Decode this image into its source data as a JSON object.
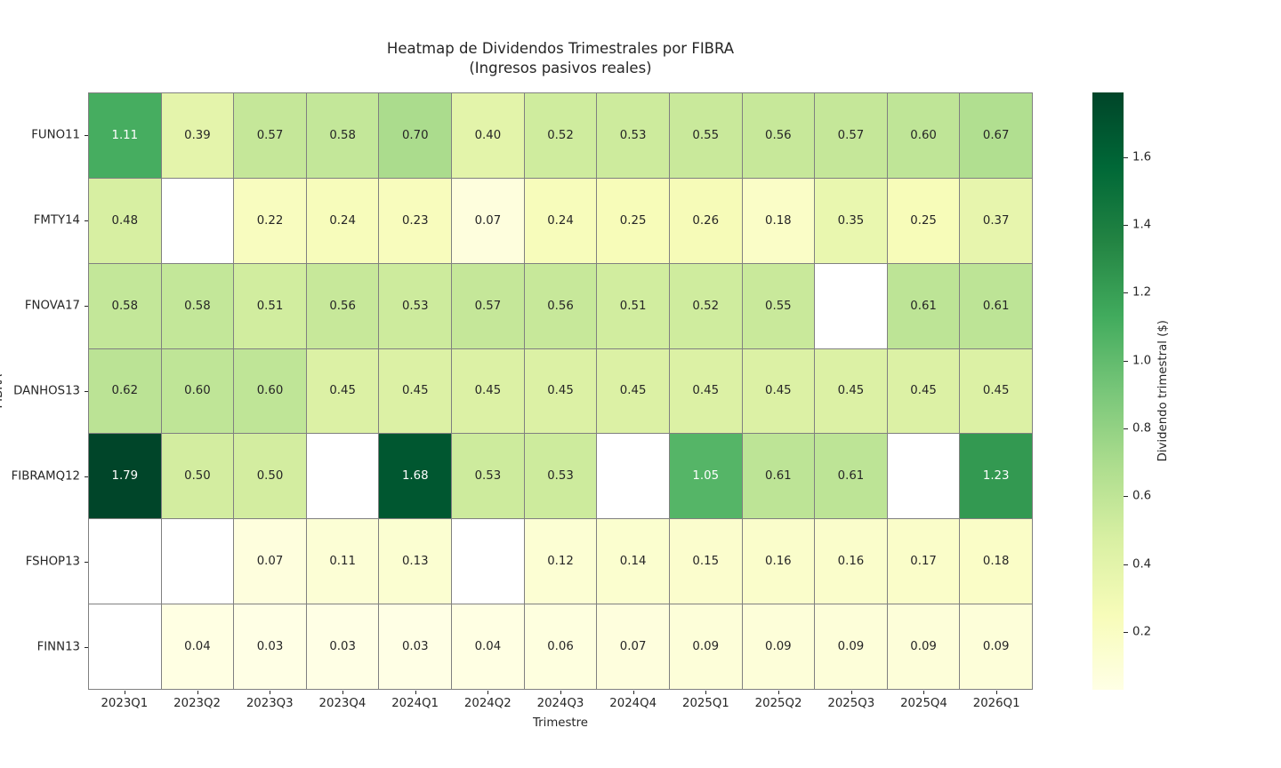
{
  "title": {
    "line1": "Heatmap de Dividendos Trimestrales por FIBRA",
    "line2": "(Ingresos pasivos reales)"
  },
  "chart_data": {
    "type": "heatmap",
    "title": "Heatmap de Dividendos Trimestrales por FIBRA\n(Ingresos pasivos reales)",
    "xlabel": "Trimestre",
    "ylabel": "FIBRA",
    "columns": [
      "2023Q1",
      "2023Q2",
      "2023Q3",
      "2023Q4",
      "2024Q1",
      "2024Q2",
      "2024Q3",
      "2024Q4",
      "2025Q1",
      "2025Q2",
      "2025Q3",
      "2025Q4",
      "2026Q1"
    ],
    "rows": [
      "FUNO11",
      "FMTY14",
      "FNOVA17",
      "DANHOS13",
      "FIBRAMQ12",
      "FSHOP13",
      "FINN13"
    ],
    "values": [
      [
        1.11,
        0.39,
        0.57,
        0.58,
        0.7,
        0.4,
        0.52,
        0.53,
        0.55,
        0.56,
        0.57,
        0.6,
        0.67
      ],
      [
        0.48,
        null,
        0.22,
        0.24,
        0.23,
        0.07,
        0.24,
        0.25,
        0.26,
        0.18,
        0.35,
        0.25,
        0.37
      ],
      [
        0.58,
        0.58,
        0.51,
        0.56,
        0.53,
        0.57,
        0.56,
        0.51,
        0.52,
        0.55,
        null,
        0.61,
        0.61
      ],
      [
        0.62,
        0.6,
        0.6,
        0.45,
        0.45,
        0.45,
        0.45,
        0.45,
        0.45,
        0.45,
        0.45,
        0.45,
        0.45
      ],
      [
        1.79,
        0.5,
        0.5,
        null,
        1.68,
        0.53,
        0.53,
        null,
        1.05,
        0.61,
        0.61,
        null,
        1.23
      ],
      [
        null,
        null,
        0.07,
        0.11,
        0.13,
        null,
        0.12,
        0.14,
        0.15,
        0.16,
        0.16,
        0.17,
        0.18
      ],
      [
        null,
        0.04,
        0.03,
        0.03,
        0.03,
        0.04,
        0.06,
        0.07,
        0.09,
        0.09,
        0.09,
        0.09,
        0.09
      ]
    ],
    "value_format_decimals": 2,
    "vmin": 0.03,
    "vmax": 1.79,
    "colorbar": {
      "label": "Dividendo trimestral ($)",
      "ticks": [
        0.2,
        0.4,
        0.6,
        0.8,
        1.0,
        1.2,
        1.4,
        1.6
      ]
    },
    "colormap": {
      "name": "YlGn",
      "stops": [
        "#ffffe5",
        "#f7fcb9",
        "#d9f0a3",
        "#addd8e",
        "#78c679",
        "#41ab5d",
        "#238443",
        "#006837",
        "#004529"
      ]
    },
    "grid_line_color": "#808080",
    "missing_color": "#ffffff",
    "annot_dark_text_color": "#262626",
    "annot_light_text_color": "#ffffff",
    "legend_position": "right-colorbar",
    "grid": "cell-borders"
  }
}
